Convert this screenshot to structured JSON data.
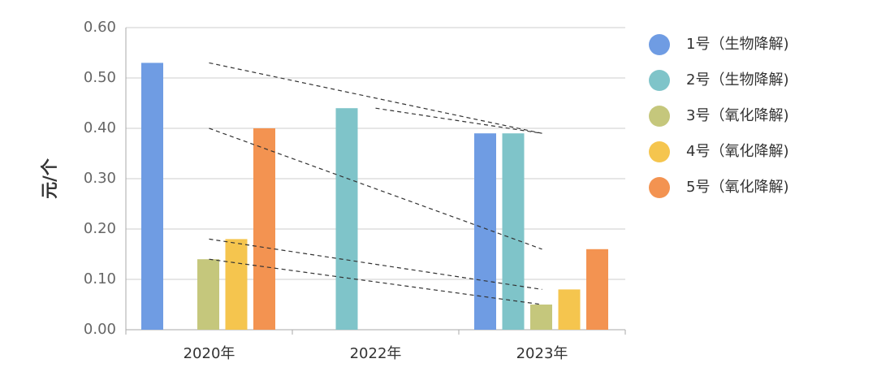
{
  "chart_data": {
    "type": "bar",
    "y_label": "元/个",
    "categories": [
      "2020年",
      "2022年",
      "2023年"
    ],
    "series": [
      {
        "name": "1号（生物降解)",
        "color": "#6f9ce3",
        "values": [
          0.53,
          null,
          0.39
        ]
      },
      {
        "name": "2号（生物降解)",
        "color": "#7fc4c9",
        "values": [
          null,
          0.44,
          0.39
        ]
      },
      {
        "name": "3号（氧化降解)",
        "color": "#c5c77c",
        "values": [
          0.14,
          null,
          0.05
        ]
      },
      {
        "name": "4号（氧化降解)",
        "color": "#f5c54e",
        "values": [
          0.18,
          null,
          0.08
        ]
      },
      {
        "name": "5号（氧化降解)",
        "color": "#f39351",
        "values": [
          0.4,
          null,
          0.16
        ]
      }
    ],
    "ylim": [
      0,
      0.6
    ],
    "yticks": [
      {
        "value": 0,
        "label": "0.00"
      },
      {
        "value": 0.1,
        "label": "0.10"
      },
      {
        "value": 0.2,
        "label": "0.20"
      },
      {
        "value": 0.3,
        "label": "0.30"
      },
      {
        "value": 0.4,
        "label": "0.40"
      },
      {
        "value": 0.5,
        "label": "0.50"
      },
      {
        "value": 0.6,
        "label": "0.60"
      }
    ],
    "grid": true,
    "trend_lines": true,
    "legend": "right"
  }
}
